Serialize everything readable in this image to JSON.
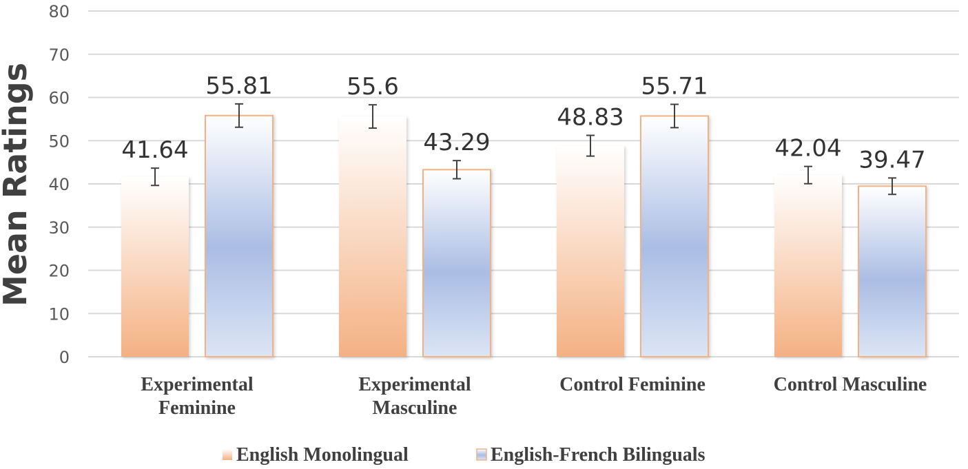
{
  "chart_data": {
    "type": "bar",
    "title": "",
    "xlabel": "",
    "ylabel": "Mean Ratings",
    "ylim": [
      0,
      80
    ],
    "yticks": [
      0,
      10,
      20,
      30,
      40,
      50,
      60,
      70,
      80
    ],
    "grid": true,
    "legend_position": "bottom",
    "categories": [
      [
        "Experimental",
        "Feminine"
      ],
      [
        "Experimental",
        "Masculine"
      ],
      [
        "Control Feminine"
      ],
      [
        "Control Masculine"
      ]
    ],
    "series": [
      {
        "name": "English Monolingual",
        "values": [
          41.64,
          55.6,
          48.83,
          42.04
        ],
        "labels": [
          "41.64",
          "55.6",
          "48.83",
          "42.04"
        ],
        "error": [
          2.0,
          2.7,
          2.4,
          2.0
        ],
        "color_top": "#ffffff",
        "color_bottom": "#f4b183"
      },
      {
        "name": "English-French Bilinguals",
        "values": [
          55.81,
          43.29,
          55.71,
          39.47
        ],
        "labels": [
          "55.81",
          "43.29",
          "55.71",
          "39.47"
        ],
        "error": [
          2.7,
          2.1,
          2.7,
          1.9
        ],
        "color_top": "#ffffff",
        "color_bottom": "#a9bde4",
        "border": "#f4b183"
      }
    ]
  }
}
